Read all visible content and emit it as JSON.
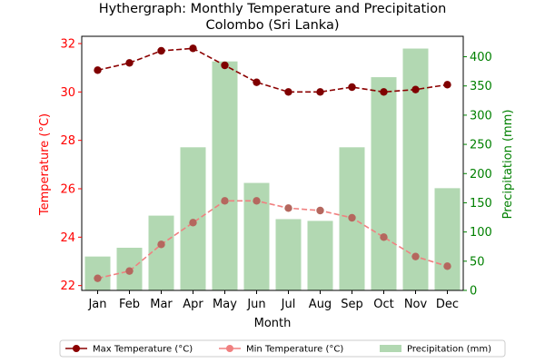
{
  "chart_data": {
    "type": "bar+line",
    "title": "Hythergraph: Monthly Temperature and Precipitation\nColombo (Sri Lanka)",
    "xlabel": "Month",
    "ylabel_left": "Temperature (°C)",
    "ylabel_right": "Precipitation (mm)",
    "categories": [
      "Jan",
      "Feb",
      "Mar",
      "Apr",
      "May",
      "Jun",
      "Jul",
      "Aug",
      "Sep",
      "Oct",
      "Nov",
      "Dec"
    ],
    "ylim_left": [
      21.8,
      32.3
    ],
    "ylim_right": [
      0,
      435
    ],
    "yticks_left": [
      22,
      24,
      26,
      28,
      30,
      32
    ],
    "yticks_right": [
      0,
      50,
      100,
      150,
      200,
      250,
      300,
      350,
      400
    ],
    "series": [
      {
        "name": "Max Temperature (°C)",
        "kind": "line",
        "axis": "left",
        "color": "#8b0000",
        "values": [
          30.9,
          31.2,
          31.7,
          31.8,
          31.1,
          30.4,
          30.0,
          30.0,
          30.2,
          30.0,
          30.1,
          30.3
        ]
      },
      {
        "name": "Min Temperature (°C)",
        "kind": "line",
        "axis": "left",
        "color": "#f08080",
        "values": [
          22.3,
          22.6,
          23.7,
          24.6,
          25.5,
          25.5,
          25.2,
          25.1,
          24.8,
          24.0,
          23.2,
          22.8
        ]
      },
      {
        "name": "Precipitation (mm)",
        "kind": "bar",
        "axis": "right",
        "color": "#b2d8b2",
        "values": [
          58,
          73,
          128,
          245,
          392,
          184,
          122,
          119,
          245,
          365,
          414,
          175
        ]
      }
    ],
    "grid": false,
    "legend_position": "bottom-center",
    "colors": {
      "left_axis": "#ff0000",
      "right_axis": "#008000",
      "max_marker": "#800000",
      "min_marker": "#b5675e"
    }
  }
}
